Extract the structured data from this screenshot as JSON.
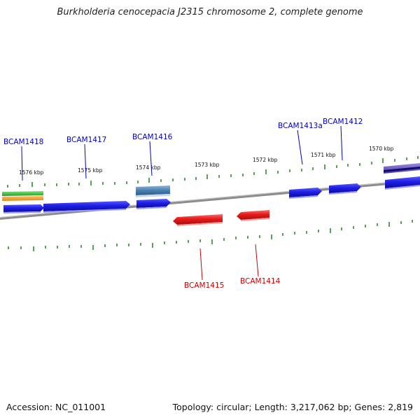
{
  "title": "Burkholderia cenocepacia J2315 chromosome 2, complete genome",
  "footer": {
    "accession": "Accession: NC_011001",
    "summary": "Topology: circular; Length: 3,217,062 bp; Genes: 2,819"
  },
  "colors": {
    "forward_label": "#0000cc",
    "reverse_label": "#cc0000",
    "forward_gene": "#1f1fe6",
    "reverse_gene": "#e61b1b",
    "tick": "#2e8b2e",
    "backbone": "#8c8c8c"
  },
  "scale_labels": [
    "1576 kbp",
    "1575 kbp",
    "1574 kbp",
    "1573 kbp",
    "1572 kbp",
    "1571 kbp",
    "1570 kbp"
  ],
  "forward_genes": [
    "BCAM1418",
    "BCAM1417",
    "BCAM1416",
    "BCAM1413a",
    "BCAM1412"
  ],
  "reverse_genes": [
    "BCAM1415",
    "BCAM1414"
  ]
}
